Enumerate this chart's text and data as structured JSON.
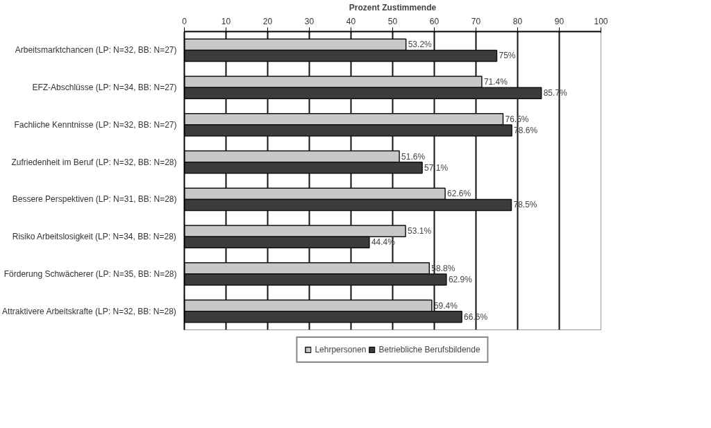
{
  "chart_data": {
    "type": "bar",
    "orientation": "horizontal",
    "xlabel": "Prozent Zustimmende",
    "categories": [
      "Arbeitsmarktchancen (LP: N=32, BB: N=27)",
      "EFZ-Abschlüsse (LP: N=34, BB: N=27)",
      "Fachliche Kenntnisse (LP: N=32, BB: N=27)",
      "Zufriedenheit im Beruf (LP: N=32, BB: N=28)",
      "Bessere Perspektiven (LP: N=31, BB: N=28)",
      "Risiko Arbeitslosigkeit (LP: N=34, BB: N=28)",
      "Förderung Schwächerer (LP: N=35, BB: N=28)",
      "Attraktivere Arbeitskrafte (LP: N=32, BB: N=28)"
    ],
    "series": [
      {
        "name": "Lehrpersonen",
        "color": "#c8c8c8",
        "values": [
          53.2,
          71.4,
          76.5,
          51.6,
          62.6,
          53.1,
          58.8,
          59.4
        ],
        "value_labels": [
          "53.2%",
          "71.4%",
          "76.5%",
          "51.6%",
          "62.6%",
          "53.1%",
          "58.8%",
          "59.4%"
        ]
      },
      {
        "name": "Betriebliche Berufsbildende",
        "color": "#3c3c3c",
        "values": [
          75,
          85.7,
          78.6,
          57.1,
          78.5,
          44.4,
          62.9,
          66.6
        ],
        "value_labels": [
          "75%",
          "85.7%",
          "78.6%",
          "57.1%",
          "78.5%",
          "44.4%",
          "62.9%",
          "66.6%"
        ]
      }
    ],
    "xlim": [
      0,
      100
    ],
    "xticks": [
      0,
      10,
      20,
      30,
      40,
      50,
      60,
      70,
      80,
      90,
      100
    ],
    "grid": "x",
    "legend": "bottom"
  }
}
